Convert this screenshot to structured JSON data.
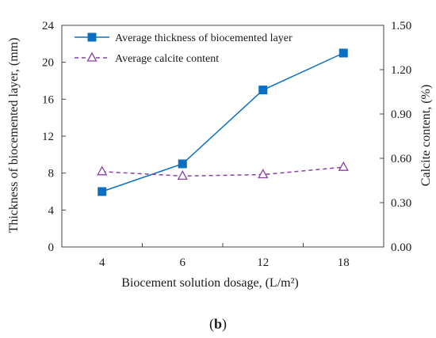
{
  "chart_data": {
    "type": "line",
    "categories": [
      "4",
      "6",
      "12",
      "18"
    ],
    "xlabel": "Biocement solution dosage, (L/m²)",
    "ylabel_left": "Thickness of biocemented layer, (mm)",
    "ylabel_right": "Calcite content, (%)",
    "ylim_left": [
      0,
      24
    ],
    "ylim_right": [
      0,
      1.5
    ],
    "yticks_left": [
      "0",
      "4",
      "8",
      "12",
      "16",
      "20",
      "24"
    ],
    "yticks_right": [
      "0.00",
      "0.30",
      "0.60",
      "0.90",
      "1.20",
      "1.50"
    ],
    "grid": false,
    "legend_position": "top-left",
    "series": [
      {
        "name": "Average thickness of biocemented layer",
        "axis": "left",
        "values": [
          6,
          9,
          17,
          21
        ],
        "color": "#0a6fc2",
        "marker": "square",
        "line_style": "solid"
      },
      {
        "name": "Average calcite content",
        "axis": "right",
        "values": [
          0.51,
          0.48,
          0.49,
          0.54
        ],
        "color": "#8b3fa8",
        "marker": "triangle-open",
        "line_style": "dashed"
      }
    ],
    "caption_paren_open": "(",
    "caption_letter": "b",
    "caption_paren_close": ")"
  }
}
